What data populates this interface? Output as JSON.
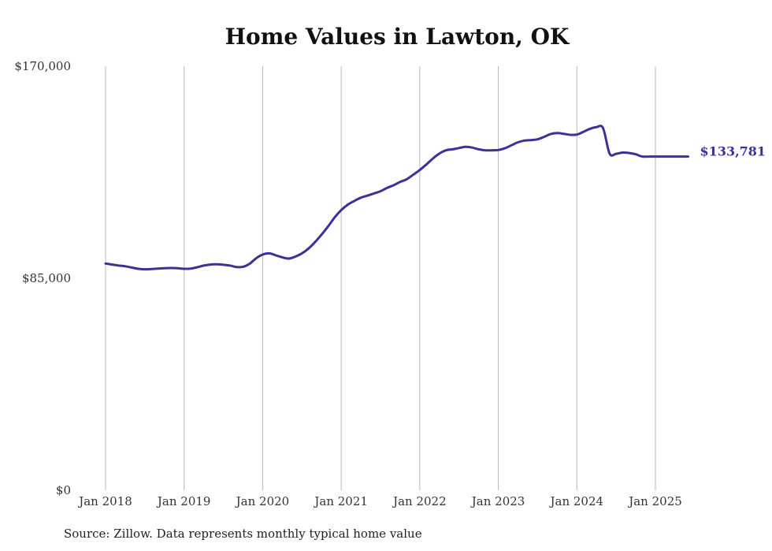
{
  "chart_data": {
    "type": "line",
    "title": "Home Values in Lawton, OK",
    "xlabel": "",
    "ylabel": "",
    "ylim": [
      0,
      170000
    ],
    "y_ticks": [
      0,
      85000,
      170000
    ],
    "y_tick_labels": [
      "$0",
      "$85,000",
      "$170,000"
    ],
    "x_tick_labels": [
      "Jan 2018",
      "Jan 2019",
      "Jan 2020",
      "Jan 2021",
      "Jan 2022",
      "Jan 2023",
      "Jan 2024",
      "Jan 2025"
    ],
    "x_tick_dates": [
      "2018-01",
      "2019-01",
      "2020-01",
      "2021-01",
      "2022-01",
      "2023-01",
      "2024-01",
      "2025-01"
    ],
    "grid": "vertical",
    "line_color": "#3a3296",
    "end_label": "$133,781",
    "series": [
      {
        "x": [
          "2018-01",
          "2018-02",
          "2018-03",
          "2018-04",
          "2018-05",
          "2018-06",
          "2018-07",
          "2018-08",
          "2018-09",
          "2018-10",
          "2018-11",
          "2018-12",
          "2019-01",
          "2019-02",
          "2019-03",
          "2019-04",
          "2019-05",
          "2019-06",
          "2019-07",
          "2019-08",
          "2019-09",
          "2019-10",
          "2019-11",
          "2019-12",
          "2020-01",
          "2020-02",
          "2020-03",
          "2020-04",
          "2020-05",
          "2020-06",
          "2020-07",
          "2020-08",
          "2020-09",
          "2020-10",
          "2020-11",
          "2020-12",
          "2021-01",
          "2021-02",
          "2021-03",
          "2021-04",
          "2021-05",
          "2021-06",
          "2021-07",
          "2021-08",
          "2021-09",
          "2021-10",
          "2021-11",
          "2021-12",
          "2022-01",
          "2022-02",
          "2022-03",
          "2022-04",
          "2022-05",
          "2022-06",
          "2022-07",
          "2022-08",
          "2022-09",
          "2022-10",
          "2022-11",
          "2022-12",
          "2023-01",
          "2023-02",
          "2023-03",
          "2023-04",
          "2023-05",
          "2023-06",
          "2023-07",
          "2023-08",
          "2023-09",
          "2023-10",
          "2023-11",
          "2023-12",
          "2024-01",
          "2024-02",
          "2024-03",
          "2024-04",
          "2024-05",
          "2024-06",
          "2024-07",
          "2024-08",
          "2024-09",
          "2024-10",
          "2024-11",
          "2024-12",
          "2025-01",
          "2025-02",
          "2025-03",
          "2025-04",
          "2025-05",
          "2025-06"
        ],
        "values": [
          90900,
          90500,
          90100,
          89800,
          89300,
          88800,
          88600,
          88700,
          88900,
          89000,
          89100,
          89000,
          88800,
          88900,
          89400,
          90100,
          90500,
          90600,
          90400,
          90100,
          89500,
          89600,
          90800,
          93000,
          94500,
          95000,
          94200,
          93400,
          92900,
          93700,
          95000,
          96900,
          99500,
          102500,
          105800,
          109400,
          112300,
          114500,
          116000,
          117300,
          118100,
          119000,
          119900,
          121200,
          122300,
          123600,
          124700,
          126500,
          128400,
          130600,
          133000,
          135000,
          136300,
          136700,
          137200,
          137700,
          137400,
          136700,
          136300,
          136300,
          136400,
          137100,
          138300,
          139500,
          140200,
          140400,
          140700,
          141700,
          142800,
          143200,
          142900,
          142500,
          142600,
          143700,
          144900,
          145600,
          145200,
          135000,
          134900,
          135400,
          135200,
          134700,
          133781,
          133781,
          133781,
          133781,
          133781,
          133781,
          133781,
          133781
        ],
        "name": ""
      }
    ]
  },
  "source_note": "Source: Zillow. Data represents monthly typical home value"
}
